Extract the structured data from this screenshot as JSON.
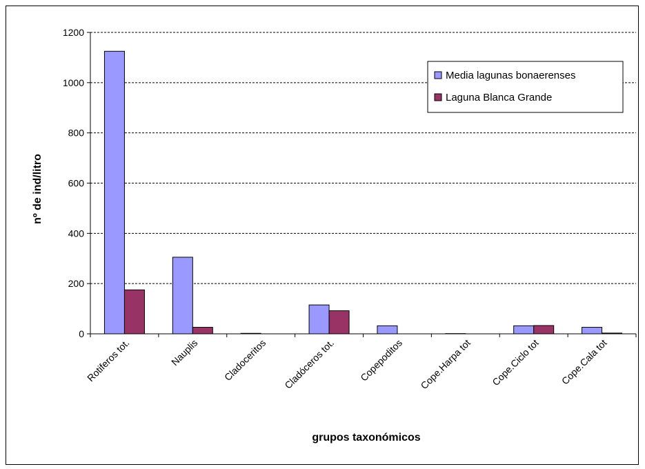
{
  "chart_data": {
    "type": "bar",
    "title": "",
    "xlabel": "grupos taxonómicos",
    "ylabel": "nº de ind/litro",
    "ylim": [
      0,
      1200
    ],
    "yticks": [
      "0",
      "200",
      "400",
      "600",
      "800",
      "1000",
      "1200"
    ],
    "grid": "horizontal dashed",
    "legend_position": "top-right",
    "categories": [
      "Rotiferos tot.",
      "Nauplis",
      "Cladoceritos",
      "Cladóceros tot.",
      "Copepoditos",
      "Cope.Harpa tot",
      "Cope.Ciclo tot",
      "Cope.Cala tot"
    ],
    "series": [
      {
        "name": "Media lagunas bonaerenses",
        "color": "#9999ff",
        "values": [
          1125,
          305,
          2,
          115,
          32,
          1,
          32,
          26
        ]
      },
      {
        "name": "Laguna Blanca Grande",
        "color": "#993366",
        "values": [
          175,
          26,
          0,
          92,
          0,
          0,
          33,
          3
        ]
      }
    ]
  }
}
